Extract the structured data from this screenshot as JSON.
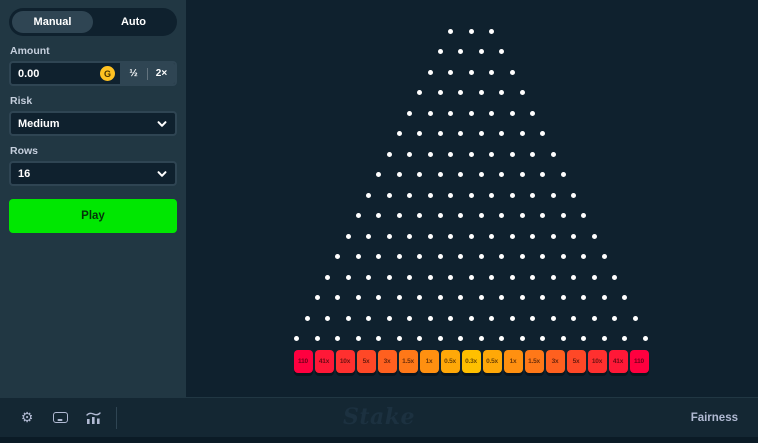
{
  "sidebar": {
    "tabs": [
      {
        "label": "Manual",
        "active": true
      },
      {
        "label": "Auto",
        "active": false
      }
    ],
    "amount": {
      "label": "Amount",
      "value": "0.00",
      "coin_letter": "G",
      "half_label": "½",
      "double_label": "2×"
    },
    "risk": {
      "label": "Risk",
      "value": "Medium"
    },
    "rows": {
      "label": "Rows",
      "value": "16"
    },
    "play_label": "Play"
  },
  "game": {
    "rows": 16,
    "peg_color": "#ffffff",
    "buckets": [
      {
        "label": "110",
        "color": "#ff003f"
      },
      {
        "label": "41x",
        "color": "#ff1837"
      },
      {
        "label": "10x",
        "color": "#ff302f"
      },
      {
        "label": "5x",
        "color": "#ff4827"
      },
      {
        "label": "3x",
        "color": "#ff601f"
      },
      {
        "label": "1.5x",
        "color": "#ff7818"
      },
      {
        "label": "1x",
        "color": "#ff9010"
      },
      {
        "label": "0.5x",
        "color": "#ffa808"
      },
      {
        "label": "0.3x",
        "color": "#ffc000"
      },
      {
        "label": "0.5x",
        "color": "#ffa808"
      },
      {
        "label": "1x",
        "color": "#ff9010"
      },
      {
        "label": "1.5x",
        "color": "#ff7818"
      },
      {
        "label": "3x",
        "color": "#ff601f"
      },
      {
        "label": "5x",
        "color": "#ff4827"
      },
      {
        "label": "10x",
        "color": "#ff302f"
      },
      {
        "label": "41x",
        "color": "#ff1837"
      },
      {
        "label": "110",
        "color": "#ff003f"
      }
    ]
  },
  "footer": {
    "brand": "Stake",
    "fairness_label": "Fairness",
    "icons": [
      {
        "name": "settings-icon"
      },
      {
        "name": "theater-mode-icon"
      },
      {
        "name": "live-stats-icon"
      }
    ]
  },
  "colors": {
    "sidebar_bg": "#213743",
    "board_bg": "#0f212e",
    "play_button": "#00e701",
    "coin": "#ffc222",
    "bucket_edge": "#ff003f",
    "bucket_center": "#ffc000"
  }
}
